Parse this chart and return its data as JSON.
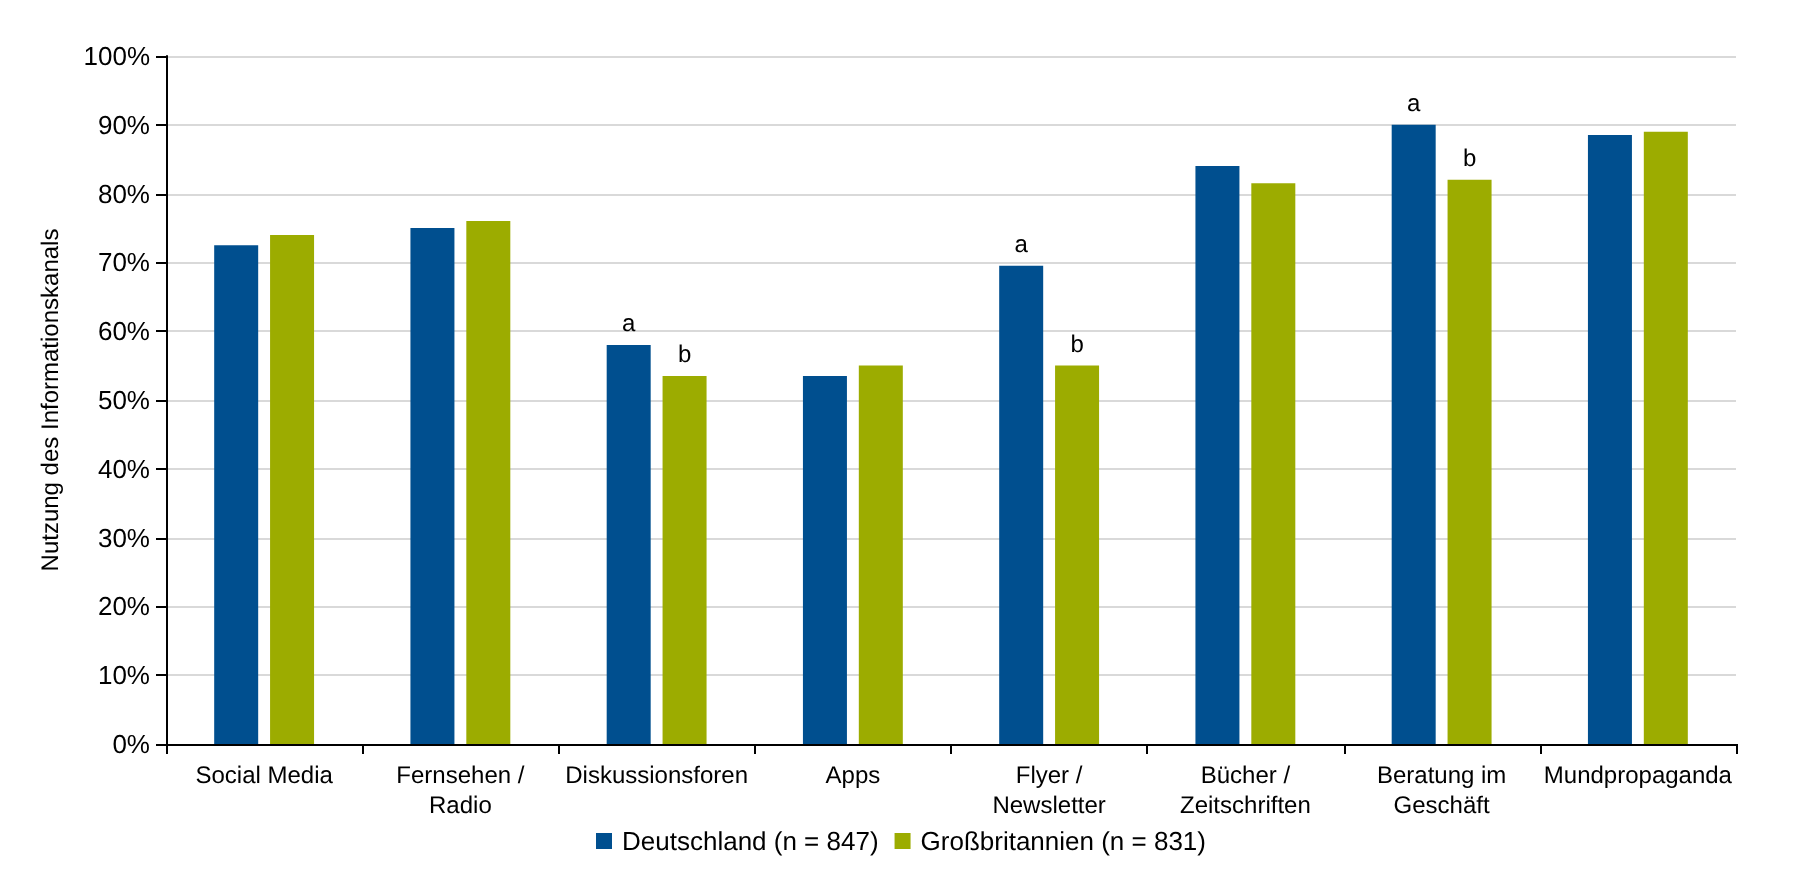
{
  "chart_data": {
    "type": "bar",
    "ylabel": "Nutzung des Informationskanals",
    "categories": [
      "Social Media",
      "Fernsehen / Radio",
      "Diskussionsforen",
      "Apps",
      "Flyer / Newsletter",
      "Bücher / Zeitschriften",
      "Beratung im Geschäft",
      "Mundpropaganda"
    ],
    "series": [
      {
        "name": "Deutschland (n = 847)",
        "color": "#004f8f",
        "values": [
          72.5,
          75,
          58,
          53.5,
          69.5,
          84,
          90,
          88.5
        ]
      },
      {
        "name": "Großbritannien (n = 831)",
        "color": "#9cac00",
        "values": [
          74,
          76,
          53.5,
          55,
          55,
          81.5,
          82,
          89
        ]
      }
    ],
    "ylim": [
      0,
      100
    ],
    "yticks": [
      {
        "value": 0,
        "label": "0%"
      },
      {
        "value": 10,
        "label": "10%"
      },
      {
        "value": 20,
        "label": "20%"
      },
      {
        "value": 30,
        "label": "30%"
      },
      {
        "value": 40,
        "label": "40%"
      },
      {
        "value": 50,
        "label": "50%"
      },
      {
        "value": 60,
        "label": "60%"
      },
      {
        "value": 70,
        "label": "70%"
      },
      {
        "value": 80,
        "label": "80%"
      },
      {
        "value": 90,
        "label": "90%"
      },
      {
        "value": 100,
        "label": "100%"
      }
    ],
    "grid": "y",
    "legend": "bottom",
    "annotations": [
      {
        "text": "a",
        "x": "Diskussionsforen",
        "y": 58
      },
      {
        "text": "b",
        "x": "Diskussionsforen",
        "y": 53.5
      },
      {
        "text": "a",
        "x": "Flyer / Newsletter",
        "y": 69.5
      },
      {
        "text": "b",
        "x": "Flyer / Newsletter",
        "y": 55
      },
      {
        "text": "a",
        "x": "Beratung im Geschäft",
        "y": 90
      },
      {
        "text": "b",
        "x": "Beratung im Geschäft",
        "y": 82
      }
    ]
  }
}
